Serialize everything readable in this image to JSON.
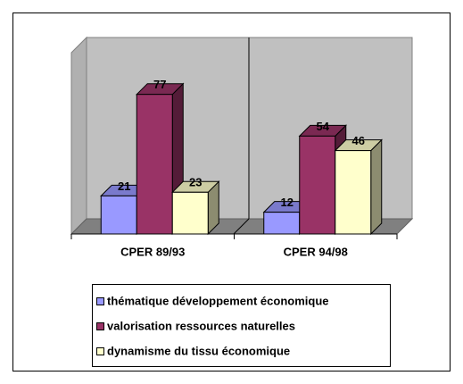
{
  "chart_data": {
    "type": "bar3d",
    "categories": [
      "CPER 89/93",
      "CPER 94/98"
    ],
    "series": [
      {
        "name": "thématique développement économique",
        "color": "#9999ff",
        "values": [
          21,
          12
        ]
      },
      {
        "name": "valorisation ressources naturelles",
        "color": "#993366",
        "values": [
          77,
          54
        ]
      },
      {
        "name": "dynamisme du tissu économique",
        "color": "#ffffcc",
        "values": [
          23,
          46
        ]
      }
    ],
    "ylim": [
      0,
      100
    ]
  }
}
